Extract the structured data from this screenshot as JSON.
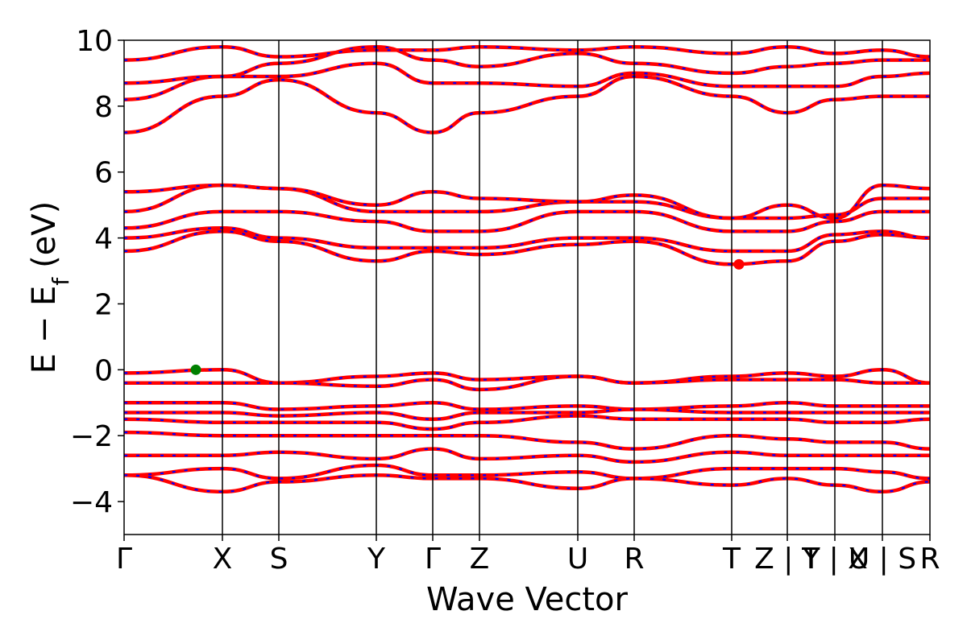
{
  "chart_data": {
    "type": "line",
    "title": "",
    "xlabel": "Wave Vector",
    "ylabel": "E − E_f (eV)",
    "ylabel_parts": {
      "base": "E − E",
      "sub": "f",
      "unit": "(eV)"
    },
    "ylim": [
      -5,
      10
    ],
    "xlim": [
      0,
      100
    ],
    "yticks": [
      -4,
      -2,
      0,
      2,
      4,
      6,
      8,
      10
    ],
    "ytick_labels": [
      "−4",
      "−2",
      "0",
      "2",
      "4",
      "6",
      "8",
      "10"
    ],
    "kpoints": [
      {
        "label": "Γ",
        "x": 0
      },
      {
        "label": "X",
        "x": 12.2
      },
      {
        "label": "S",
        "x": 19.2
      },
      {
        "label": "Y",
        "x": 31.3
      },
      {
        "label": "Γ",
        "x": 38.3
      },
      {
        "label": "Z",
        "x": 44.1
      },
      {
        "label": "U",
        "x": 56.3
      },
      {
        "label": "R",
        "x": 63.3
      },
      {
        "label": "T",
        "x": 75.4
      },
      {
        "label": "Z | Y",
        "x": 82.3
      },
      {
        "label": "T | X",
        "x": 88.2
      },
      {
        "label": "U | S",
        "x": 94.1
      },
      {
        "label": "R",
        "x": 100
      }
    ],
    "band_colors": {
      "spin_up": "#ff0000",
      "spin_down": "#0000ff"
    },
    "series": [
      {
        "x": [
          0,
          12.2,
          19.2,
          31.3,
          38.3,
          44.1,
          56.3,
          63.3,
          75.4,
          82.3,
          88.2,
          94.1,
          100
        ],
        "values": [
          7.2,
          8.3,
          8.8,
          7.8,
          7.2,
          7.8,
          8.3,
          8.9,
          8.3,
          7.8,
          8.2,
          8.3,
          8.3
        ]
      },
      {
        "x": [
          0,
          12.2,
          19.2,
          31.3,
          38.3,
          44.1,
          56.3,
          63.3,
          75.4,
          82.3,
          88.2,
          94.1,
          100
        ],
        "values": [
          8.2,
          8.9,
          8.9,
          9.3,
          8.7,
          8.7,
          8.6,
          9.0,
          8.6,
          8.6,
          8.6,
          8.9,
          9.0
        ]
      },
      {
        "x": [
          0,
          12.2,
          19.2,
          31.3,
          38.3,
          44.1,
          56.3,
          63.3,
          75.4,
          82.3,
          88.2,
          94.1,
          100
        ],
        "values": [
          8.7,
          8.9,
          9.3,
          9.8,
          9.4,
          9.2,
          9.6,
          9.3,
          9.0,
          9.2,
          9.3,
          9.4,
          9.4
        ]
      },
      {
        "x": [
          0,
          12.2,
          19.2,
          31.3,
          38.3,
          44.1,
          56.3,
          63.3,
          75.4,
          82.3,
          88.2,
          94.1,
          100
        ],
        "values": [
          9.4,
          9.8,
          9.5,
          9.7,
          9.7,
          9.8,
          9.7,
          9.8,
          9.6,
          9.8,
          9.6,
          9.7,
          9.5
        ]
      },
      {
        "x": [
          0,
          12.2,
          19.2,
          31.3,
          38.3,
          44.1,
          56.3,
          63.3,
          75.4,
          82.3,
          88.2,
          94.1,
          100
        ],
        "values": [
          3.6,
          4.2,
          3.9,
          3.3,
          3.6,
          3.5,
          3.8,
          3.9,
          3.2,
          3.3,
          3.9,
          4.1,
          4.0
        ]
      },
      {
        "x": [
          0,
          12.2,
          19.2,
          31.3,
          38.3,
          44.1,
          56.3,
          63.3,
          75.4,
          82.3,
          88.2,
          94.1,
          100
        ],
        "values": [
          4.0,
          4.3,
          4.0,
          3.7,
          3.7,
          3.7,
          4.0,
          4.0,
          3.6,
          3.6,
          4.1,
          4.2,
          4.0
        ]
      },
      {
        "x": [
          0,
          12.2,
          19.2,
          31.3,
          38.3,
          44.1,
          56.3,
          63.3,
          75.4,
          82.3,
          88.2,
          94.1,
          100
        ],
        "values": [
          4.3,
          4.8,
          4.8,
          4.5,
          4.2,
          4.2,
          4.8,
          4.8,
          4.2,
          4.2,
          4.5,
          4.8,
          4.8
        ]
      },
      {
        "x": [
          0,
          12.2,
          19.2,
          31.3,
          38.3,
          44.1,
          56.3,
          63.3,
          75.4,
          82.3,
          88.2,
          94.1,
          100
        ],
        "values": [
          4.8,
          5.6,
          5.5,
          4.8,
          4.8,
          4.8,
          5.1,
          5.1,
          4.6,
          4.6,
          4.7,
          5.2,
          5.2
        ]
      },
      {
        "x": [
          0,
          12.2,
          19.2,
          31.3,
          38.3,
          44.1,
          56.3,
          63.3,
          75.4,
          82.3,
          88.2,
          94.1,
          100
        ],
        "values": [
          5.4,
          5.6,
          5.5,
          5.0,
          5.4,
          5.2,
          5.1,
          5.3,
          4.6,
          5.0,
          4.6,
          5.6,
          5.5
        ]
      },
      {
        "x": [
          0,
          12.2,
          19.2,
          31.3,
          38.3,
          44.1,
          56.3,
          63.3,
          75.4,
          82.3,
          88.2,
          94.1,
          100
        ],
        "values": [
          -0.1,
          0.0,
          -0.4,
          -0.2,
          -0.1,
          -0.3,
          -0.2,
          -0.4,
          -0.2,
          -0.1,
          -0.2,
          0.0,
          -0.4
        ]
      },
      {
        "x": [
          0,
          12.2,
          19.2,
          31.3,
          38.3,
          44.1,
          56.3,
          63.3,
          75.4,
          82.3,
          88.2,
          94.1,
          100
        ],
        "values": [
          -0.4,
          -0.4,
          -0.4,
          -0.5,
          -0.3,
          -0.6,
          -0.2,
          -0.4,
          -0.3,
          -0.3,
          -0.3,
          -0.4,
          -0.4
        ]
      },
      {
        "x": [
          0,
          12.2,
          19.2,
          31.3,
          38.3,
          44.1,
          56.3,
          63.3,
          75.4,
          82.3,
          88.2,
          94.1,
          100
        ],
        "values": [
          -1.0,
          -1.0,
          -1.2,
          -1.1,
          -1.0,
          -1.2,
          -1.1,
          -1.2,
          -1.1,
          -1.0,
          -1.1,
          -1.1,
          -1.1
        ]
      },
      {
        "x": [
          0,
          12.2,
          19.2,
          31.3,
          38.3,
          44.1,
          56.3,
          63.3,
          75.4,
          82.3,
          88.2,
          94.1,
          100
        ],
        "values": [
          -1.3,
          -1.3,
          -1.4,
          -1.3,
          -1.5,
          -1.3,
          -1.3,
          -1.2,
          -1.3,
          -1.3,
          -1.3,
          -1.3,
          -1.3
        ]
      },
      {
        "x": [
          0,
          12.2,
          19.2,
          31.3,
          38.3,
          44.1,
          56.3,
          63.3,
          75.4,
          82.3,
          88.2,
          94.1,
          100
        ],
        "values": [
          -1.5,
          -1.6,
          -1.6,
          -1.6,
          -1.8,
          -1.6,
          -1.4,
          -1.5,
          -1.5,
          -1.5,
          -1.6,
          -1.6,
          -1.5
        ]
      },
      {
        "x": [
          0,
          12.2,
          19.2,
          31.3,
          38.3,
          44.1,
          56.3,
          63.3,
          75.4,
          82.3,
          88.2,
          94.1,
          100
        ],
        "values": [
          -1.9,
          -2.0,
          -2.0,
          -2.0,
          -2.0,
          -2.0,
          -2.2,
          -2.4,
          -2.0,
          -2.1,
          -2.2,
          -2.2,
          -2.4
        ]
      },
      {
        "x": [
          0,
          12.2,
          19.2,
          31.3,
          38.3,
          44.1,
          56.3,
          63.3,
          75.4,
          82.3,
          88.2,
          94.1,
          100
        ],
        "values": [
          -2.6,
          -2.6,
          -2.5,
          -2.7,
          -2.4,
          -2.7,
          -2.6,
          -2.8,
          -2.5,
          -2.6,
          -2.6,
          -2.6,
          -2.6
        ]
      },
      {
        "x": [
          0,
          12.2,
          19.2,
          31.3,
          38.3,
          44.1,
          56.3,
          63.3,
          75.4,
          82.3,
          88.2,
          94.1,
          100
        ],
        "values": [
          -3.2,
          -3.0,
          -3.3,
          -2.9,
          -3.2,
          -3.2,
          -3.1,
          -3.3,
          -3.0,
          -3.0,
          -3.0,
          -3.1,
          -3.3
        ]
      },
      {
        "x": [
          0,
          12.2,
          19.2,
          31.3,
          38.3,
          44.1,
          56.3,
          63.3,
          75.4,
          82.3,
          88.2,
          94.1,
          100
        ],
        "values": [
          -3.2,
          -3.7,
          -3.4,
          -3.2,
          -3.3,
          -3.3,
          -3.6,
          -3.3,
          -3.5,
          -3.3,
          -3.5,
          -3.7,
          -3.4
        ]
      }
    ],
    "markers": [
      {
        "name": "valence band maximum",
        "x": 8.9,
        "y": 0.0,
        "color": "#008000"
      },
      {
        "name": "conduction band minimum",
        "x": 76.3,
        "y": 3.2,
        "color": "#ff0000"
      }
    ],
    "grid": false,
    "legend": "none"
  }
}
